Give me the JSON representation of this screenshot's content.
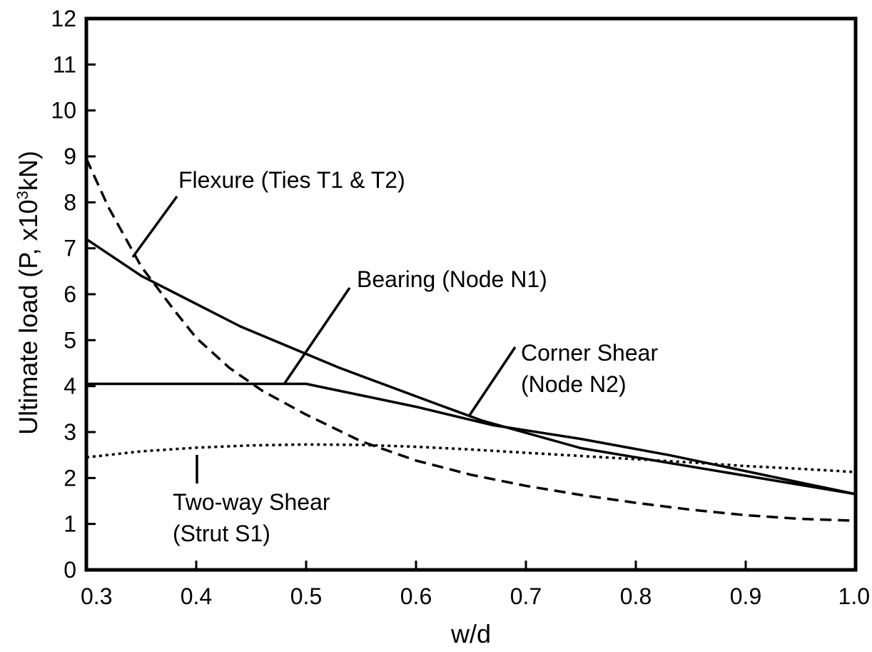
{
  "chart_data": {
    "type": "line",
    "xlabel": "w/d",
    "ylabel": {
      "main": "Ultimate load (P, x10",
      "sup": "3",
      "tail": "kN)"
    },
    "xlim": [
      0.3,
      1.0
    ],
    "ylim": [
      0,
      12
    ],
    "xticks": [
      "0.3",
      "0.4",
      "0.5",
      "0.6",
      "0.7",
      "0.8",
      "0.9",
      "1.0"
    ],
    "yticks": [
      "0",
      "1",
      "2",
      "3",
      "4",
      "5",
      "6",
      "7",
      "8",
      "9",
      "10",
      "11",
      "12"
    ],
    "grid": false,
    "legend": "none",
    "series": [
      {
        "style": "dashed",
        "x": [
          0.3,
          0.32,
          0.35,
          0.38,
          0.4,
          0.43,
          0.46,
          0.5,
          0.55,
          0.6,
          0.65,
          0.7,
          0.75,
          0.8,
          0.85,
          0.9,
          0.95,
          1.0
        ],
        "y": [
          8.95,
          7.9,
          6.6,
          5.65,
          5.05,
          4.4,
          3.9,
          3.38,
          2.8,
          2.38,
          2.07,
          1.83,
          1.63,
          1.46,
          1.31,
          1.19,
          1.11,
          1.07
        ]
      },
      {
        "style": "solid",
        "x": [
          0.3,
          0.35,
          0.44,
          0.53,
          0.62,
          0.66,
          0.75,
          0.85,
          1.0
        ],
        "y": [
          7.2,
          6.4,
          5.3,
          4.4,
          3.6,
          3.25,
          2.65,
          2.25,
          1.65
        ]
      },
      {
        "style": "solid",
        "x": [
          0.3,
          0.5,
          0.6,
          0.67,
          0.75,
          0.83,
          1.0
        ],
        "y": [
          4.05,
          4.05,
          3.55,
          3.15,
          2.85,
          2.5,
          1.65
        ]
      },
      {
        "style": "dotted",
        "x": [
          0.3,
          0.35,
          0.4,
          0.45,
          0.5,
          0.55,
          0.6,
          0.65,
          0.7,
          0.75,
          0.8,
          0.85,
          0.9,
          0.95,
          1.0
        ],
        "y": [
          2.45,
          2.58,
          2.66,
          2.71,
          2.73,
          2.72,
          2.68,
          2.62,
          2.55,
          2.48,
          2.41,
          2.34,
          2.26,
          2.2,
          2.13
        ]
      }
    ],
    "annotations": [
      {
        "lines": [
          "Flexure (Ties T1 & T2)"
        ]
      },
      {
        "lines": [
          "Bearing (Node N1)"
        ]
      },
      {
        "lines": [
          "Corner Shear",
          "(Node N2)"
        ]
      },
      {
        "lines": [
          "Two-way Shear",
          "(Strut S1)"
        ]
      }
    ]
  }
}
